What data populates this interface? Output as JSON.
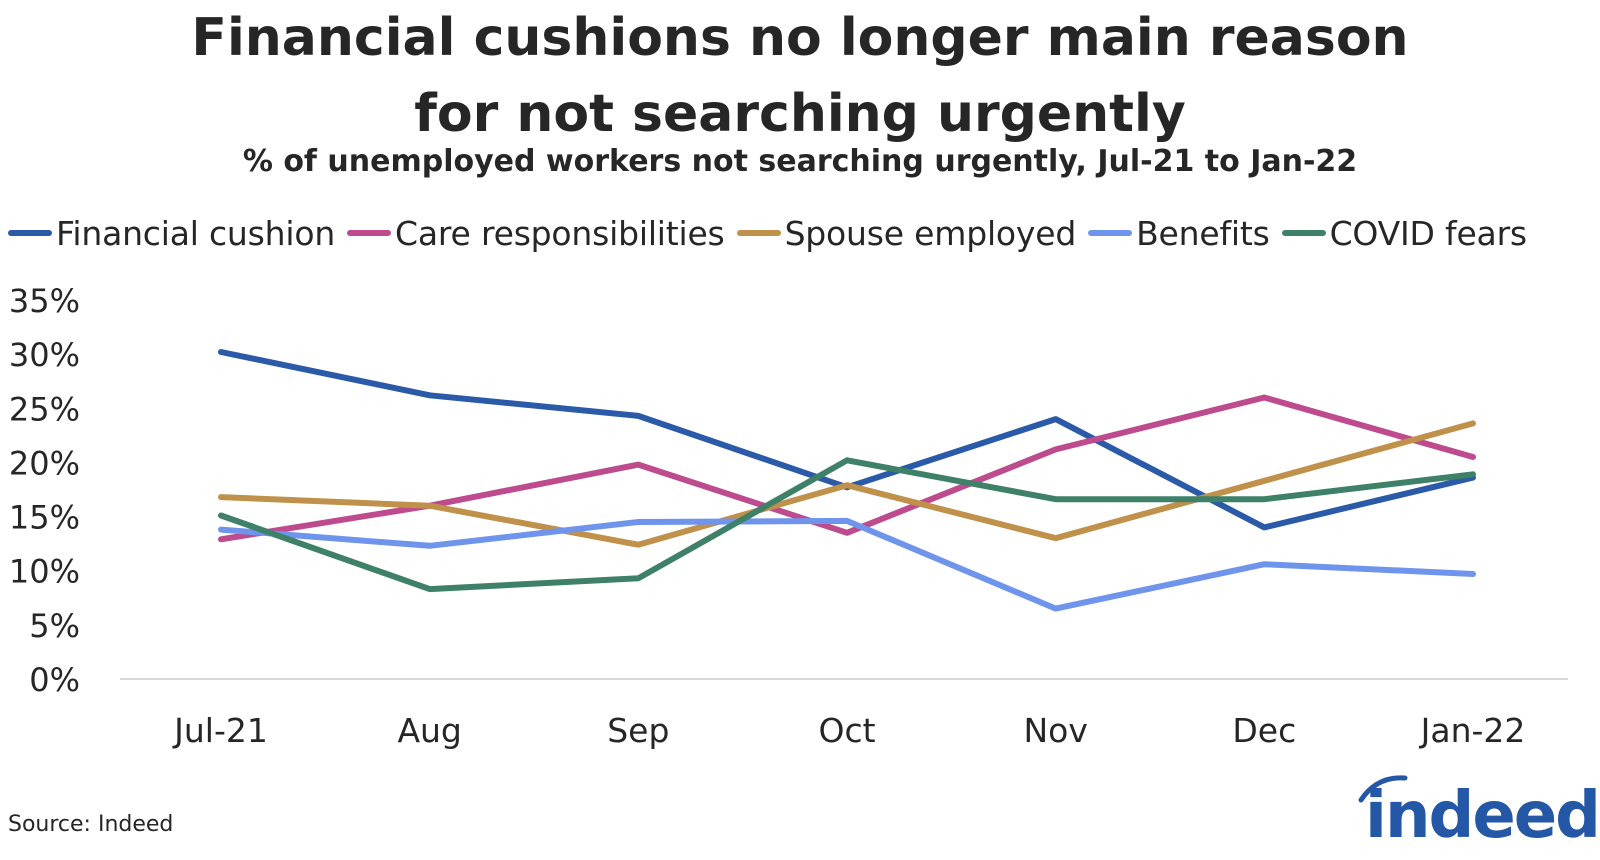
{
  "chart_data": {
    "type": "line",
    "title": [
      "Financial cushions no longer main reason",
      "for not searching urgently"
    ],
    "subtitle": "% of unemployed workers not searching urgently, Jul-21 to Jan-22",
    "categories": [
      "Jul-21",
      "Aug",
      "Sep",
      "Oct",
      "Nov",
      "Dec",
      "Jan-22"
    ],
    "y_ticks": [
      "0%",
      "5%",
      "10%",
      "15%",
      "20%",
      "25%",
      "30%",
      "35%"
    ],
    "ylim": [
      0,
      35
    ],
    "y_unit": "%",
    "grid": false,
    "legend_position": "top",
    "series": [
      {
        "name": "Financial cushion",
        "color": "#2b5aa8",
        "values": [
          30.2,
          26.2,
          24.3,
          17.7,
          24.0,
          14.0,
          18.6
        ]
      },
      {
        "name": "Care responsibilities",
        "color": "#bd4b8e",
        "values": [
          12.9,
          16.0,
          19.8,
          13.5,
          21.2,
          26.0,
          20.5
        ]
      },
      {
        "name": "Spouse employed",
        "color": "#c0914b",
        "values": [
          16.8,
          16.0,
          12.4,
          17.9,
          13.0,
          18.3,
          23.6
        ]
      },
      {
        "name": "Benefits",
        "color": "#6e95eb",
        "values": [
          13.8,
          12.3,
          14.5,
          14.6,
          6.5,
          10.6,
          9.7
        ]
      },
      {
        "name": "COVID fears",
        "color": "#3f8068",
        "values": [
          15.1,
          8.3,
          9.3,
          20.2,
          16.6,
          16.6,
          18.9
        ]
      }
    ]
  },
  "footer": {
    "source": "Source: Indeed",
    "logo_text": "indeed",
    "logo_color": "#2557a7"
  }
}
